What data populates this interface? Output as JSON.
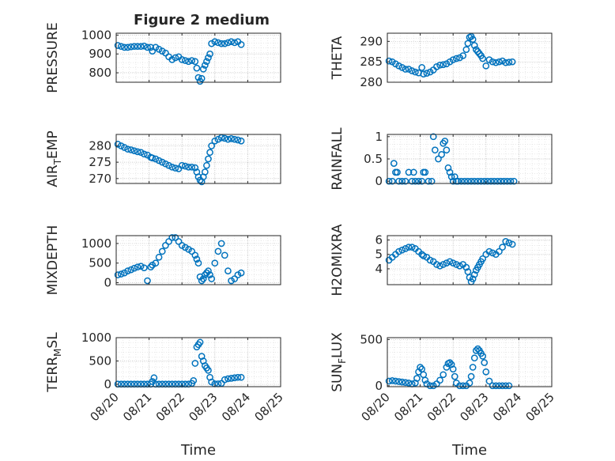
{
  "figure": {
    "title": "Figure 2 medium",
    "xlabel": "Time",
    "marker_color": "#0072bd"
  },
  "x_ticks": [
    "08/20",
    "08/21",
    "08/22",
    "08/23",
    "08/24",
    "08/25"
  ],
  "chart_data": [
    {
      "type": "scatter",
      "id": "pressure",
      "ylabel": "PRESSURE",
      "yticks": [
        "800",
        "900",
        "1000"
      ],
      "ylim": [
        750,
        1010
      ],
      "xlim": [
        "08/20",
        "08/25"
      ],
      "grid": "minor dotted",
      "x": [
        0.05,
        0.15,
        0.25,
        0.35,
        0.45,
        0.55,
        0.65,
        0.75,
        0.85,
        0.95,
        1.05,
        1.1,
        1.2,
        1.3,
        1.4,
        1.5,
        1.6,
        1.7,
        1.8,
        1.9,
        2.0,
        2.1,
        2.2,
        2.3,
        2.4,
        2.45,
        2.5,
        2.55,
        2.6,
        2.65,
        2.7,
        2.75,
        2.8,
        2.85,
        2.9,
        3.0,
        3.1,
        3.2,
        3.3,
        3.4,
        3.5,
        3.6,
        3.7,
        3.8
      ],
      "y": [
        945,
        940,
        935,
        935,
        938,
        940,
        940,
        940,
        942,
        935,
        935,
        915,
        935,
        925,
        915,
        905,
        885,
        870,
        880,
        885,
        870,
        865,
        860,
        865,
        860,
        825,
        775,
        755,
        770,
        820,
        840,
        860,
        880,
        900,
        955,
        965,
        960,
        955,
        955,
        960,
        965,
        960,
        965,
        950
      ]
    },
    {
      "type": "scatter",
      "id": "theta",
      "ylabel": "THETA",
      "yticks": [
        "280",
        "285",
        "290"
      ],
      "ylim": [
        280,
        292
      ],
      "xlim": [
        "08/20",
        "08/25"
      ],
      "grid": "minor dotted",
      "x": [
        0.05,
        0.15,
        0.25,
        0.35,
        0.45,
        0.55,
        0.65,
        0.75,
        0.85,
        0.95,
        1.05,
        1.1,
        1.2,
        1.3,
        1.4,
        1.5,
        1.6,
        1.7,
        1.8,
        1.9,
        2.0,
        2.1,
        2.2,
        2.3,
        2.4,
        2.45,
        2.5,
        2.55,
        2.6,
        2.65,
        2.7,
        2.75,
        2.8,
        2.85,
        2.9,
        3.0,
        3.1,
        3.2,
        3.3,
        3.4,
        3.5,
        3.6,
        3.7,
        3.8
      ],
      "y": [
        285.2,
        285.0,
        284.5,
        284.0,
        283.6,
        283.2,
        283.2,
        282.8,
        282.5,
        282.3,
        283.6,
        282.0,
        282.2,
        282.5,
        283.0,
        283.8,
        284.2,
        284.3,
        284.5,
        285.0,
        285.5,
        285.8,
        286.0,
        286.5,
        288.0,
        289.5,
        291.0,
        291.2,
        290.5,
        289.0,
        288.0,
        287.5,
        287.0,
        286.5,
        285.8,
        284.0,
        285.5,
        285.0,
        284.8,
        285.0,
        285.2,
        284.8,
        284.9,
        285.0
      ]
    },
    {
      "type": "scatter",
      "id": "air-temp",
      "ylabel": "AIR_TEMP",
      "yticks": [
        "270",
        "275",
        "280"
      ],
      "ylim": [
        268.5,
        283.5
      ],
      "xlim": [
        "08/20",
        "08/25"
      ],
      "grid": "minor dotted",
      "x": [
        0.05,
        0.15,
        0.25,
        0.35,
        0.45,
        0.55,
        0.65,
        0.75,
        0.85,
        0.95,
        1.05,
        1.1,
        1.2,
        1.3,
        1.4,
        1.5,
        1.6,
        1.7,
        1.8,
        1.9,
        2.0,
        2.1,
        2.2,
        2.3,
        2.4,
        2.45,
        2.5,
        2.55,
        2.6,
        2.65,
        2.7,
        2.75,
        2.8,
        2.85,
        2.9,
        3.0,
        3.1,
        3.2,
        3.3,
        3.4,
        3.5,
        3.6,
        3.7,
        3.8
      ],
      "y": [
        280.5,
        280.0,
        279.5,
        279.0,
        278.8,
        278.5,
        278.2,
        278.0,
        277.5,
        277.2,
        276.5,
        276.3,
        276.0,
        275.5,
        275.0,
        274.5,
        274.0,
        273.5,
        273.2,
        273.0,
        274.0,
        273.8,
        273.5,
        273.5,
        273.3,
        272.0,
        270.5,
        269.5,
        269.0,
        270.5,
        272.0,
        274.0,
        276.0,
        278.0,
        280.0,
        281.5,
        282.0,
        282.5,
        282.3,
        282.0,
        282.2,
        282.0,
        281.8,
        281.5
      ]
    },
    {
      "type": "scatter",
      "id": "rainfall",
      "ylabel": "RAINFALL",
      "yticks": [
        "0",
        "0.5",
        "1"
      ],
      "ylim": [
        -0.05,
        1.05
      ],
      "xlim": [
        "08/20",
        "08/25"
      ],
      "grid": "minor dotted",
      "x": [
        0.05,
        0.15,
        0.2,
        0.25,
        0.3,
        0.35,
        0.45,
        0.55,
        0.65,
        0.75,
        0.8,
        0.85,
        0.95,
        1.05,
        1.1,
        1.15,
        1.25,
        1.35,
        1.4,
        1.45,
        1.55,
        1.65,
        1.7,
        1.75,
        1.8,
        1.85,
        1.9,
        1.95,
        2.0,
        2.05,
        2.1,
        2.15,
        2.25,
        2.35,
        2.45,
        2.55,
        2.65,
        2.75,
        2.85,
        2.95,
        3.05,
        3.15,
        3.25,
        3.35,
        3.45,
        3.55,
        3.65,
        3.75,
        3.85
      ],
      "y": [
        0,
        0,
        0.4,
        0.2,
        0.2,
        0,
        0,
        0,
        0.2,
        0,
        0.2,
        0,
        0,
        0,
        0.2,
        0.2,
        0,
        0,
        1.0,
        0.7,
        0.5,
        0.6,
        0.85,
        0.9,
        0.7,
        0.3,
        0.2,
        0.1,
        0,
        0.1,
        0,
        0,
        0,
        0,
        0,
        0,
        0,
        0,
        0,
        0,
        0,
        0,
        0,
        0,
        0,
        0,
        0,
        0,
        0
      ]
    },
    {
      "type": "scatter",
      "id": "mixdepth",
      "ylabel": "MIXDEPTH",
      "yticks": [
        "0",
        "500",
        "1000"
      ],
      "ylim": [
        -50,
        1200
      ],
      "xlim": [
        "08/20",
        "08/25"
      ],
      "grid": "minor dotted",
      "x": [
        0.05,
        0.15,
        0.25,
        0.35,
        0.45,
        0.55,
        0.65,
        0.75,
        0.85,
        0.95,
        1.05,
        1.1,
        1.2,
        1.3,
        1.4,
        1.5,
        1.6,
        1.7,
        1.8,
        1.9,
        2.0,
        2.1,
        2.2,
        2.3,
        2.4,
        2.45,
        2.5,
        2.55,
        2.6,
        2.65,
        2.7,
        2.75,
        2.8,
        2.85,
        2.9,
        3.0,
        3.1,
        3.2,
        3.3,
        3.4,
        3.5,
        3.6,
        3.7,
        3.8
      ],
      "y": [
        200,
        220,
        250,
        300,
        330,
        370,
        400,
        420,
        380,
        50,
        400,
        450,
        500,
        650,
        800,
        950,
        1050,
        1150,
        1150,
        1050,
        950,
        900,
        850,
        800,
        700,
        600,
        500,
        150,
        50,
        100,
        200,
        250,
        300,
        200,
        100,
        500,
        800,
        1000,
        700,
        300,
        50,
        100,
        200,
        250
      ]
    },
    {
      "type": "scatter",
      "id": "h2omixra",
      "ylabel": "H2OMIXRA",
      "yticks": [
        "4",
        "5",
        "6"
      ],
      "ylim": [
        2.9,
        6.3
      ],
      "xlim": [
        "08/20",
        "08/25"
      ],
      "grid": "minor dotted",
      "x": [
        0.05,
        0.15,
        0.25,
        0.35,
        0.45,
        0.55,
        0.65,
        0.75,
        0.85,
        0.95,
        1.05,
        1.1,
        1.2,
        1.3,
        1.4,
        1.5,
        1.6,
        1.7,
        1.8,
        1.9,
        2.0,
        2.1,
        2.2,
        2.3,
        2.4,
        2.45,
        2.5,
        2.55,
        2.6,
        2.65,
        2.7,
        2.75,
        2.8,
        2.85,
        2.9,
        3.0,
        3.1,
        3.2,
        3.3,
        3.4,
        3.5,
        3.6,
        3.7,
        3.8
      ],
      "y": [
        4.6,
        4.8,
        5.0,
        5.2,
        5.3,
        5.4,
        5.5,
        5.5,
        5.4,
        5.2,
        5.0,
        4.9,
        4.8,
        4.6,
        4.5,
        4.3,
        4.2,
        4.3,
        4.4,
        4.5,
        4.4,
        4.3,
        4.2,
        4.3,
        4.1,
        3.8,
        3.4,
        3.1,
        3.3,
        3.6,
        3.9,
        4.1,
        4.3,
        4.5,
        4.7,
        5.0,
        5.2,
        5.1,
        5.0,
        5.2,
        5.5,
        5.9,
        5.8,
        5.7
      ]
    },
    {
      "type": "scatter",
      "id": "terr-msl",
      "ylabel": "TERR_MSL",
      "yticks": [
        "0",
        "500",
        "1000"
      ],
      "ylim": [
        -50,
        1000
      ],
      "xlim": [
        "08/20",
        "08/25"
      ],
      "grid": "minor dotted",
      "x": [
        0.05,
        0.15,
        0.25,
        0.35,
        0.45,
        0.55,
        0.65,
        0.75,
        0.85,
        0.95,
        1.05,
        1.1,
        1.15,
        1.2,
        1.3,
        1.4,
        1.5,
        1.6,
        1.7,
        1.8,
        1.9,
        2.0,
        2.1,
        2.2,
        2.3,
        2.35,
        2.4,
        2.45,
        2.5,
        2.55,
        2.6,
        2.65,
        2.7,
        2.75,
        2.8,
        2.85,
        2.9,
        3.0,
        3.1,
        3.2,
        3.3,
        3.4,
        3.5,
        3.6,
        3.7,
        3.8
      ],
      "y": [
        5,
        5,
        5,
        5,
        5,
        5,
        5,
        5,
        5,
        5,
        5,
        60,
        140,
        5,
        5,
        5,
        5,
        5,
        5,
        5,
        5,
        5,
        5,
        5,
        20,
        80,
        450,
        800,
        850,
        900,
        600,
        500,
        400,
        350,
        300,
        150,
        50,
        10,
        10,
        20,
        100,
        120,
        130,
        140,
        150,
        150
      ]
    },
    {
      "type": "scatter",
      "id": "sun-flux",
      "ylabel": "SUN_FLUX",
      "yticks": [
        "0",
        "500"
      ],
      "ylim": [
        -10,
        520
      ],
      "xlim": [
        "08/20",
        "08/25"
      ],
      "grid": "minor dotted",
      "x": [
        0.05,
        0.15,
        0.25,
        0.35,
        0.45,
        0.55,
        0.65,
        0.75,
        0.85,
        0.9,
        0.95,
        1.0,
        1.05,
        1.1,
        1.15,
        1.2,
        1.3,
        1.4,
        1.5,
        1.6,
        1.7,
        1.8,
        1.85,
        1.9,
        1.95,
        2.0,
        2.05,
        2.1,
        2.2,
        2.3,
        2.4,
        2.5,
        2.55,
        2.6,
        2.65,
        2.7,
        2.75,
        2.8,
        2.85,
        2.9,
        2.95,
        3.0,
        3.1,
        3.2,
        3.3,
        3.4,
        3.5,
        3.6,
        3.7
      ],
      "y": [
        50,
        55,
        50,
        45,
        40,
        35,
        30,
        20,
        30,
        80,
        150,
        200,
        180,
        120,
        60,
        20,
        0,
        0,
        20,
        60,
        120,
        200,
        240,
        250,
        230,
        180,
        100,
        30,
        0,
        0,
        0,
        30,
        100,
        200,
        300,
        380,
        400,
        380,
        350,
        320,
        250,
        150,
        50,
        0,
        0,
        0,
        0,
        0,
        0
      ]
    }
  ]
}
